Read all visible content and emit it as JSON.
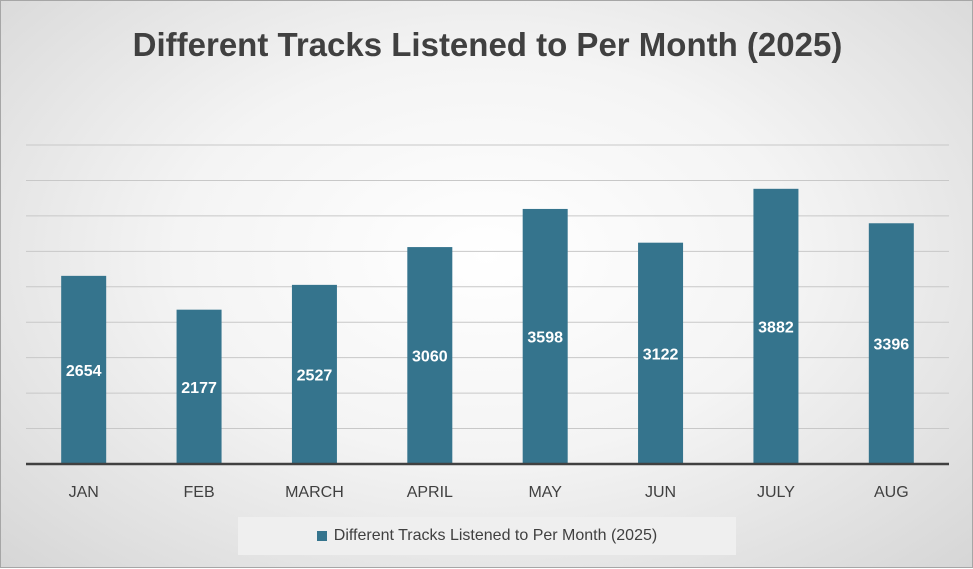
{
  "chart_data": {
    "type": "bar",
    "title": "Different Tracks Listened to Per Month (2025)",
    "categories": [
      "JAN",
      "FEB",
      "MARCH",
      "APRIL",
      "MAY",
      "JUN",
      "JULY",
      "AUG"
    ],
    "series": [
      {
        "name": "Different Tracks Listened to Per Month (2025)",
        "values": [
          2654,
          2177,
          2527,
          3060,
          3598,
          3122,
          3882,
          3396
        ],
        "color": "#35748d"
      }
    ],
    "ylim": [
      0,
      4500
    ],
    "y_gridline_step": 500,
    "grid": true,
    "y_tick_labels_shown": false,
    "data_labels": true,
    "legend_position": "bottom"
  }
}
